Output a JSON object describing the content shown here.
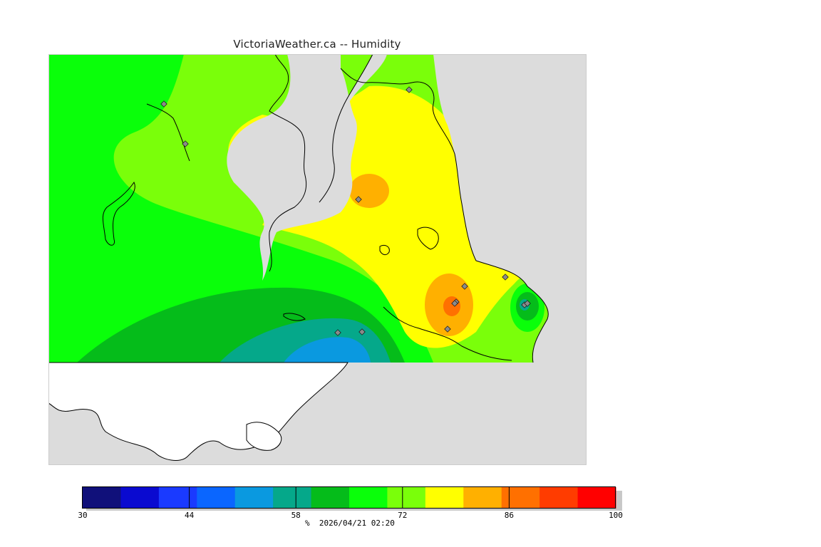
{
  "title": "VictoriaWeather.ca -- Humidity",
  "map": {
    "background_color": "#dcdcdc",
    "outside_grid_land_color": "#ffffff",
    "coastline_color": "#000000",
    "station_marker_color": "#8a8a8a",
    "station_count": 13
  },
  "legend": {
    "colors": [
      "#10107a",
      "#0a0ad0",
      "#1a3aff",
      "#0a66ff",
      "#0a99e0",
      "#05a88a",
      "#05bc1a",
      "#0aff0a",
      "#7aff0a",
      "#ffff00",
      "#ffb000",
      "#ff7000",
      "#ff3c00",
      "#ff0000"
    ],
    "ticks": [
      {
        "value": 30,
        "label": "30"
      },
      {
        "value": 44,
        "label": "44"
      },
      {
        "value": 58,
        "label": "58"
      },
      {
        "value": 72,
        "label": "72"
      },
      {
        "value": 86,
        "label": "86"
      },
      {
        "value": 100,
        "label": "100"
      }
    ],
    "min": 30,
    "max": 100
  },
  "unit": "%",
  "timestamp": "2026/04/21 02:20"
}
